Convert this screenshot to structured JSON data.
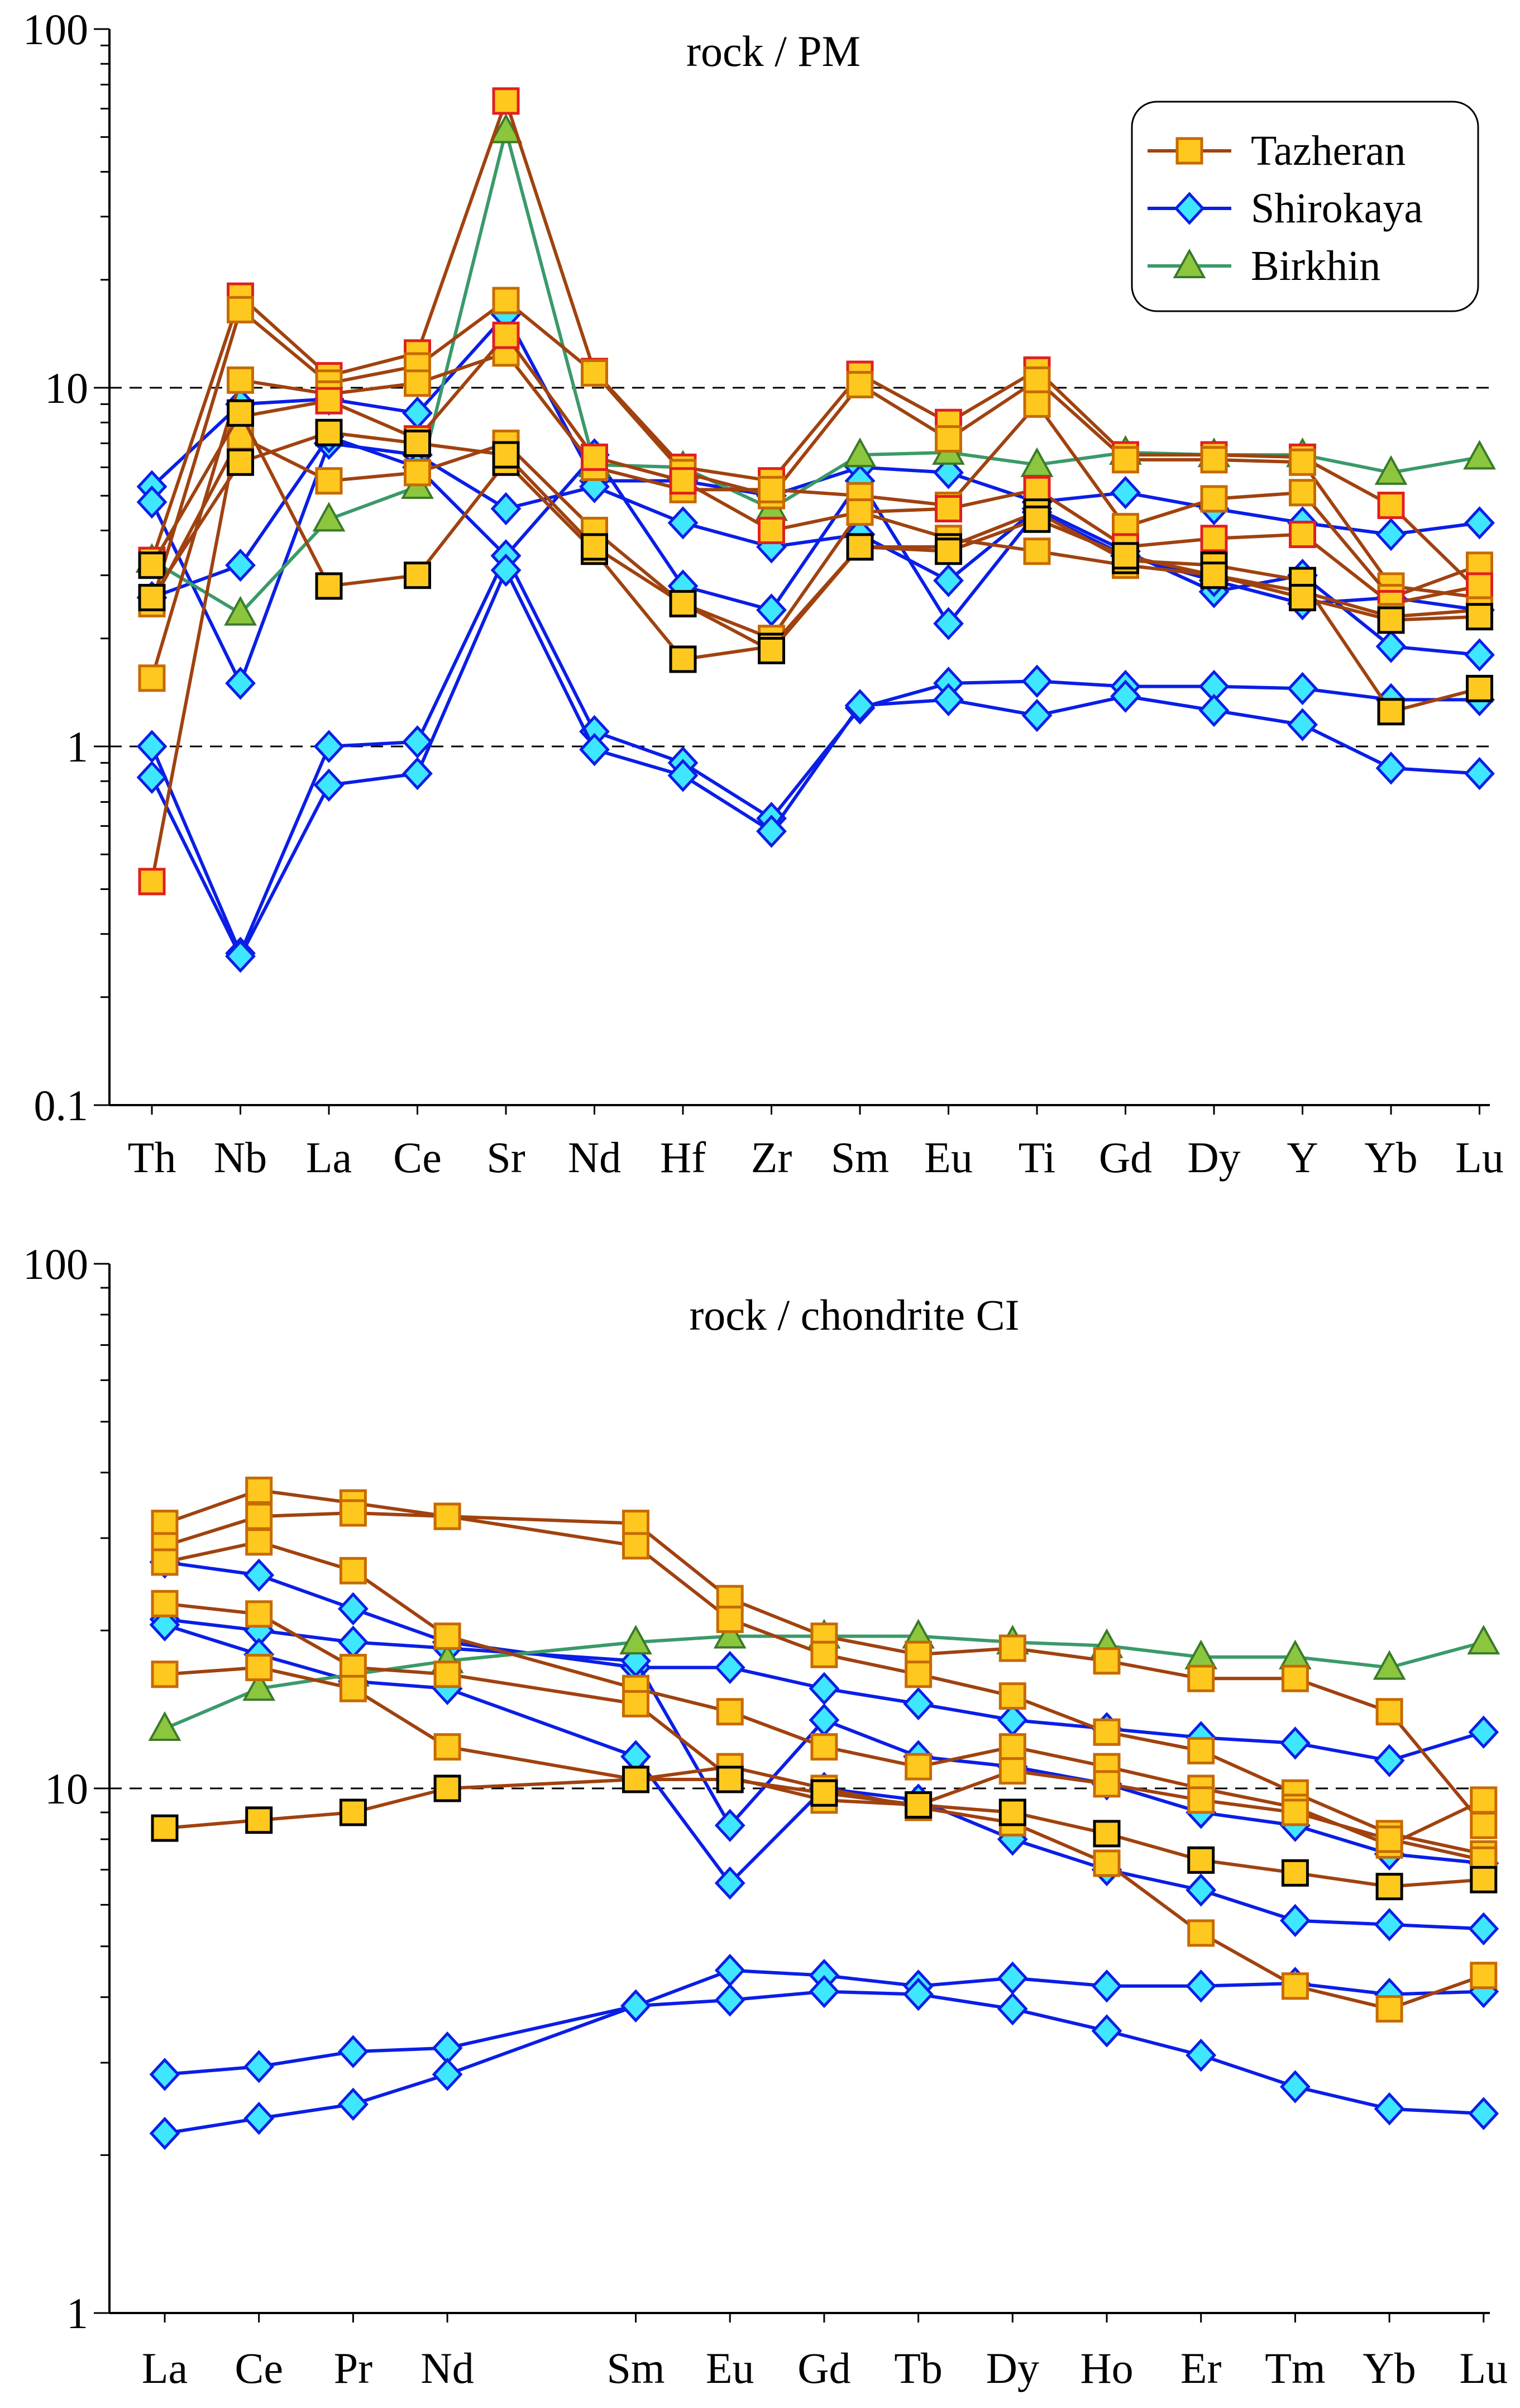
{
  "legend": [
    {
      "name": "Tazheran",
      "marker": "square",
      "line": "#a0420f",
      "fill": "#ffc81e",
      "edge": "#c76a00"
    },
    {
      "name": "Shirokaya",
      "marker": "diamond",
      "line": "#0a1ee6",
      "fill": "#3fe6ff",
      "edge": "#0a1ee6"
    },
    {
      "name": "Birkhin",
      "marker": "triangle",
      "line": "#3a9a68",
      "fill": "#8cc63f",
      "edge": "#3a7a2a"
    }
  ],
  "chart_data": [
    {
      "type": "line",
      "title": "rock / PM",
      "yscale": "log",
      "ylim": [
        0.1,
        100
      ],
      "yticks": [
        0.1,
        1,
        10,
        100
      ],
      "ytick_labels": [
        "0.1",
        "1",
        "10",
        "100"
      ],
      "reference_lines": [
        1,
        10
      ],
      "categories": [
        "Th",
        "Nb",
        "La",
        "Ce",
        "Sr",
        "Nd",
        "Hf",
        "Zr",
        "Sm",
        "Eu",
        "Ti",
        "Gd",
        "Dy",
        "Y",
        "Yb",
        "Lu"
      ],
      "series": [
        {
          "name": "Tazheran",
          "values": [
            3.3,
            18.0,
            10.8,
            12.5,
            63.0,
            11.1,
            6.0,
            5.5,
            10.9,
            8.0,
            11.2,
            6.5,
            6.5,
            6.4,
            4.7,
            2.7
          ],
          "edge": "#e02020"
        },
        {
          "name": "Tazheran",
          "values": [
            2.5,
            16.5,
            10.3,
            11.5,
            17.5,
            11.0,
            5.8,
            5.0,
            10.2,
            7.2,
            10.5,
            6.3,
            6.3,
            6.2,
            2.8,
            2.6
          ],
          "edge": "#c76a00"
        },
        {
          "name": "Tazheran",
          "values": [
            1.55,
            10.5,
            9.6,
            10.3,
            12.5,
            6.0,
            5.2,
            5.2,
            5.0,
            4.7,
            9.0,
            4.1,
            4.9,
            5.1,
            2.6,
            3.2
          ],
          "edge": "#c76a00"
        },
        {
          "name": "Tazheran",
          "values": [
            0.42,
            8.3,
            9.2,
            7.2,
            14.0,
            6.4,
            5.5,
            4.0,
            4.5,
            4.6,
            5.2,
            3.6,
            3.8,
            3.9,
            2.5,
            2.8
          ],
          "edge": "#e02020"
        },
        {
          "name": "Tazheran",
          "values": [
            2.5,
            7.3,
            5.5,
            5.8,
            7.0,
            4.0,
            2.5,
            2.0,
            4.5,
            3.8,
            3.5,
            3.2,
            3.0,
            2.7,
            2.3,
            2.4
          ],
          "edge": "#c76a00"
        },
        {
          "name": "Tazheran",
          "values": [
            3.2,
            8.5,
            2.8,
            3.0,
            6.2,
            3.5,
            1.75,
            1.9,
            3.6,
            3.6,
            4.5,
            3.3,
            3.2,
            2.9,
            1.25,
            1.45
          ],
          "edge": "#000000"
        },
        {
          "name": "Tazheran",
          "values": [
            2.6,
            6.2,
            7.5,
            7.0,
            6.5,
            3.6,
            2.5,
            1.85,
            3.6,
            3.5,
            4.3,
            3.4,
            3.0,
            2.6,
            2.25,
            2.3
          ],
          "edge": "#000000"
        },
        {
          "name": "Shirokaya",
          "values": [
            5.3,
            9.0,
            9.3,
            8.5,
            16.0,
            5.5,
            5.5,
            5.0,
            6.0,
            5.8,
            4.8,
            5.1,
            4.6,
            4.2,
            3.9,
            4.2
          ]
        },
        {
          "name": "Shirokaya",
          "values": [
            4.8,
            1.5,
            7.0,
            6.5,
            4.6,
            5.3,
            4.2,
            3.6,
            3.9,
            2.9,
            4.6,
            3.5,
            2.7,
            3.0,
            1.9,
            1.8
          ]
        },
        {
          "name": "Shirokaya",
          "values": [
            2.6,
            3.2,
            7.3,
            6.0,
            3.4,
            6.5,
            2.8,
            2.4,
            5.5,
            2.2,
            4.5,
            3.4,
            2.9,
            2.5,
            2.6,
            2.4
          ]
        },
        {
          "name": "Shirokaya",
          "values": [
            1.0,
            0.265,
            1.0,
            1.03,
            3.4,
            1.1,
            0.9,
            0.63,
            1.28,
            1.5,
            1.52,
            1.47,
            1.47,
            1.45,
            1.35,
            1.35
          ]
        },
        {
          "name": "Shirokaya",
          "values": [
            0.82,
            0.26,
            0.78,
            0.84,
            3.1,
            0.98,
            0.83,
            0.58,
            1.3,
            1.35,
            1.22,
            1.38,
            1.26,
            1.15,
            0.87,
            0.84
          ]
        },
        {
          "name": "Birkhin",
          "values": [
            3.3,
            2.35,
            4.3,
            5.3,
            52.0,
            6.1,
            6.0,
            4.6,
            6.5,
            6.6,
            6.1,
            6.6,
            6.5,
            6.5,
            5.8,
            6.4
          ]
        }
      ]
    },
    {
      "type": "line",
      "title": "rock / chondrite CI",
      "yscale": "log",
      "ylim": [
        1,
        100
      ],
      "yticks": [
        1,
        10,
        100
      ],
      "ytick_labels": [
        "1",
        "10",
        "100"
      ],
      "reference_lines": [
        10
      ],
      "categories": [
        "La",
        "Ce",
        "Pr",
        "Nd",
        "Sm",
        "Eu",
        "Gd",
        "Tb",
        "Dy",
        "Ho",
        "Er",
        "Tm",
        "Yb",
        "Lu"
      ],
      "category_positions": [
        0,
        1,
        2,
        3,
        5,
        6,
        7,
        8,
        9,
        10,
        11,
        12,
        13,
        14
      ],
      "series": [
        {
          "name": "Tazheran",
          "values": [
            32,
            37,
            35,
            33,
            32,
            23,
            19.5,
            18,
            18.5,
            17.5,
            16.2,
            16.2,
            14,
            8.5
          ],
          "edge": "#c76a00"
        },
        {
          "name": "Tazheran",
          "values": [
            29,
            33,
            33.5,
            33,
            29,
            21,
            18,
            16.5,
            15,
            12.8,
            11.8,
            9.8,
            8.2,
            7.5
          ],
          "edge": "#c76a00"
        },
        {
          "name": "Tazheran",
          "values": [
            27,
            29.5,
            26,
            19.5,
            15.5,
            14,
            12,
            11,
            12,
            11,
            10,
            9.2,
            7.8,
            9.5
          ],
          "edge": "#c76a00"
        },
        {
          "name": "Tazheran",
          "values": [
            22.5,
            21.5,
            17,
            16.5,
            14.5,
            10.5,
            9.5,
            9.3,
            10.8,
            10.2,
            9.5,
            9.0,
            8.0,
            7.3
          ],
          "edge": "#c76a00"
        },
        {
          "name": "Tazheran",
          "values": [
            16.5,
            17,
            15.5,
            12,
            10.4,
            11,
            10,
            9.2,
            8.6,
            7.2,
            5.3,
            4.2,
            3.8,
            4.4
          ],
          "edge": "#c76a00"
        },
        {
          "name": "Tazheran",
          "values": [
            8.4,
            8.7,
            9.0,
            10.0,
            10.4,
            10.4,
            9.8,
            9.3,
            9.0,
            8.2,
            7.3,
            6.9,
            6.5,
            6.7
          ],
          "edge": "#000000"
        },
        {
          "name": "Shirokaya",
          "values": [
            27,
            25.5,
            22,
            19,
            17,
            17,
            15.5,
            14.5,
            13.5,
            13,
            12.5,
            12.2,
            11.3,
            12.8
          ]
        },
        {
          "name": "Shirokaya",
          "values": [
            21,
            20,
            19,
            18.5,
            17.5,
            8.5,
            13.5,
            11.5,
            11,
            10.2,
            9.0,
            8.5,
            7.5,
            7.2
          ]
        },
        {
          "name": "Shirokaya",
          "values": [
            20.5,
            18,
            16,
            15.5,
            11.5,
            6.6,
            10,
            9.5,
            8,
            7.0,
            6.4,
            5.6,
            5.5,
            5.4
          ]
        },
        {
          "name": "Shirokaya",
          "values": [
            2.85,
            2.95,
            3.15,
            3.2,
            3.85,
            4.5,
            4.4,
            4.2,
            4.35,
            4.2,
            4.2,
            4.25,
            4.05,
            4.1
          ]
        },
        {
          "name": "Shirokaya",
          "values": [
            2.2,
            2.35,
            2.5,
            2.85,
            3.85,
            3.95,
            4.1,
            4.05,
            3.8,
            3.45,
            3.1,
            2.7,
            2.45,
            2.4
          ]
        },
        {
          "name": "Birkhin",
          "values": [
            13,
            15.5,
            16.5,
            17.5,
            19,
            19.5,
            19.5,
            19.5,
            19,
            18.7,
            17.8,
            17.8,
            17,
            19
          ]
        }
      ]
    }
  ]
}
